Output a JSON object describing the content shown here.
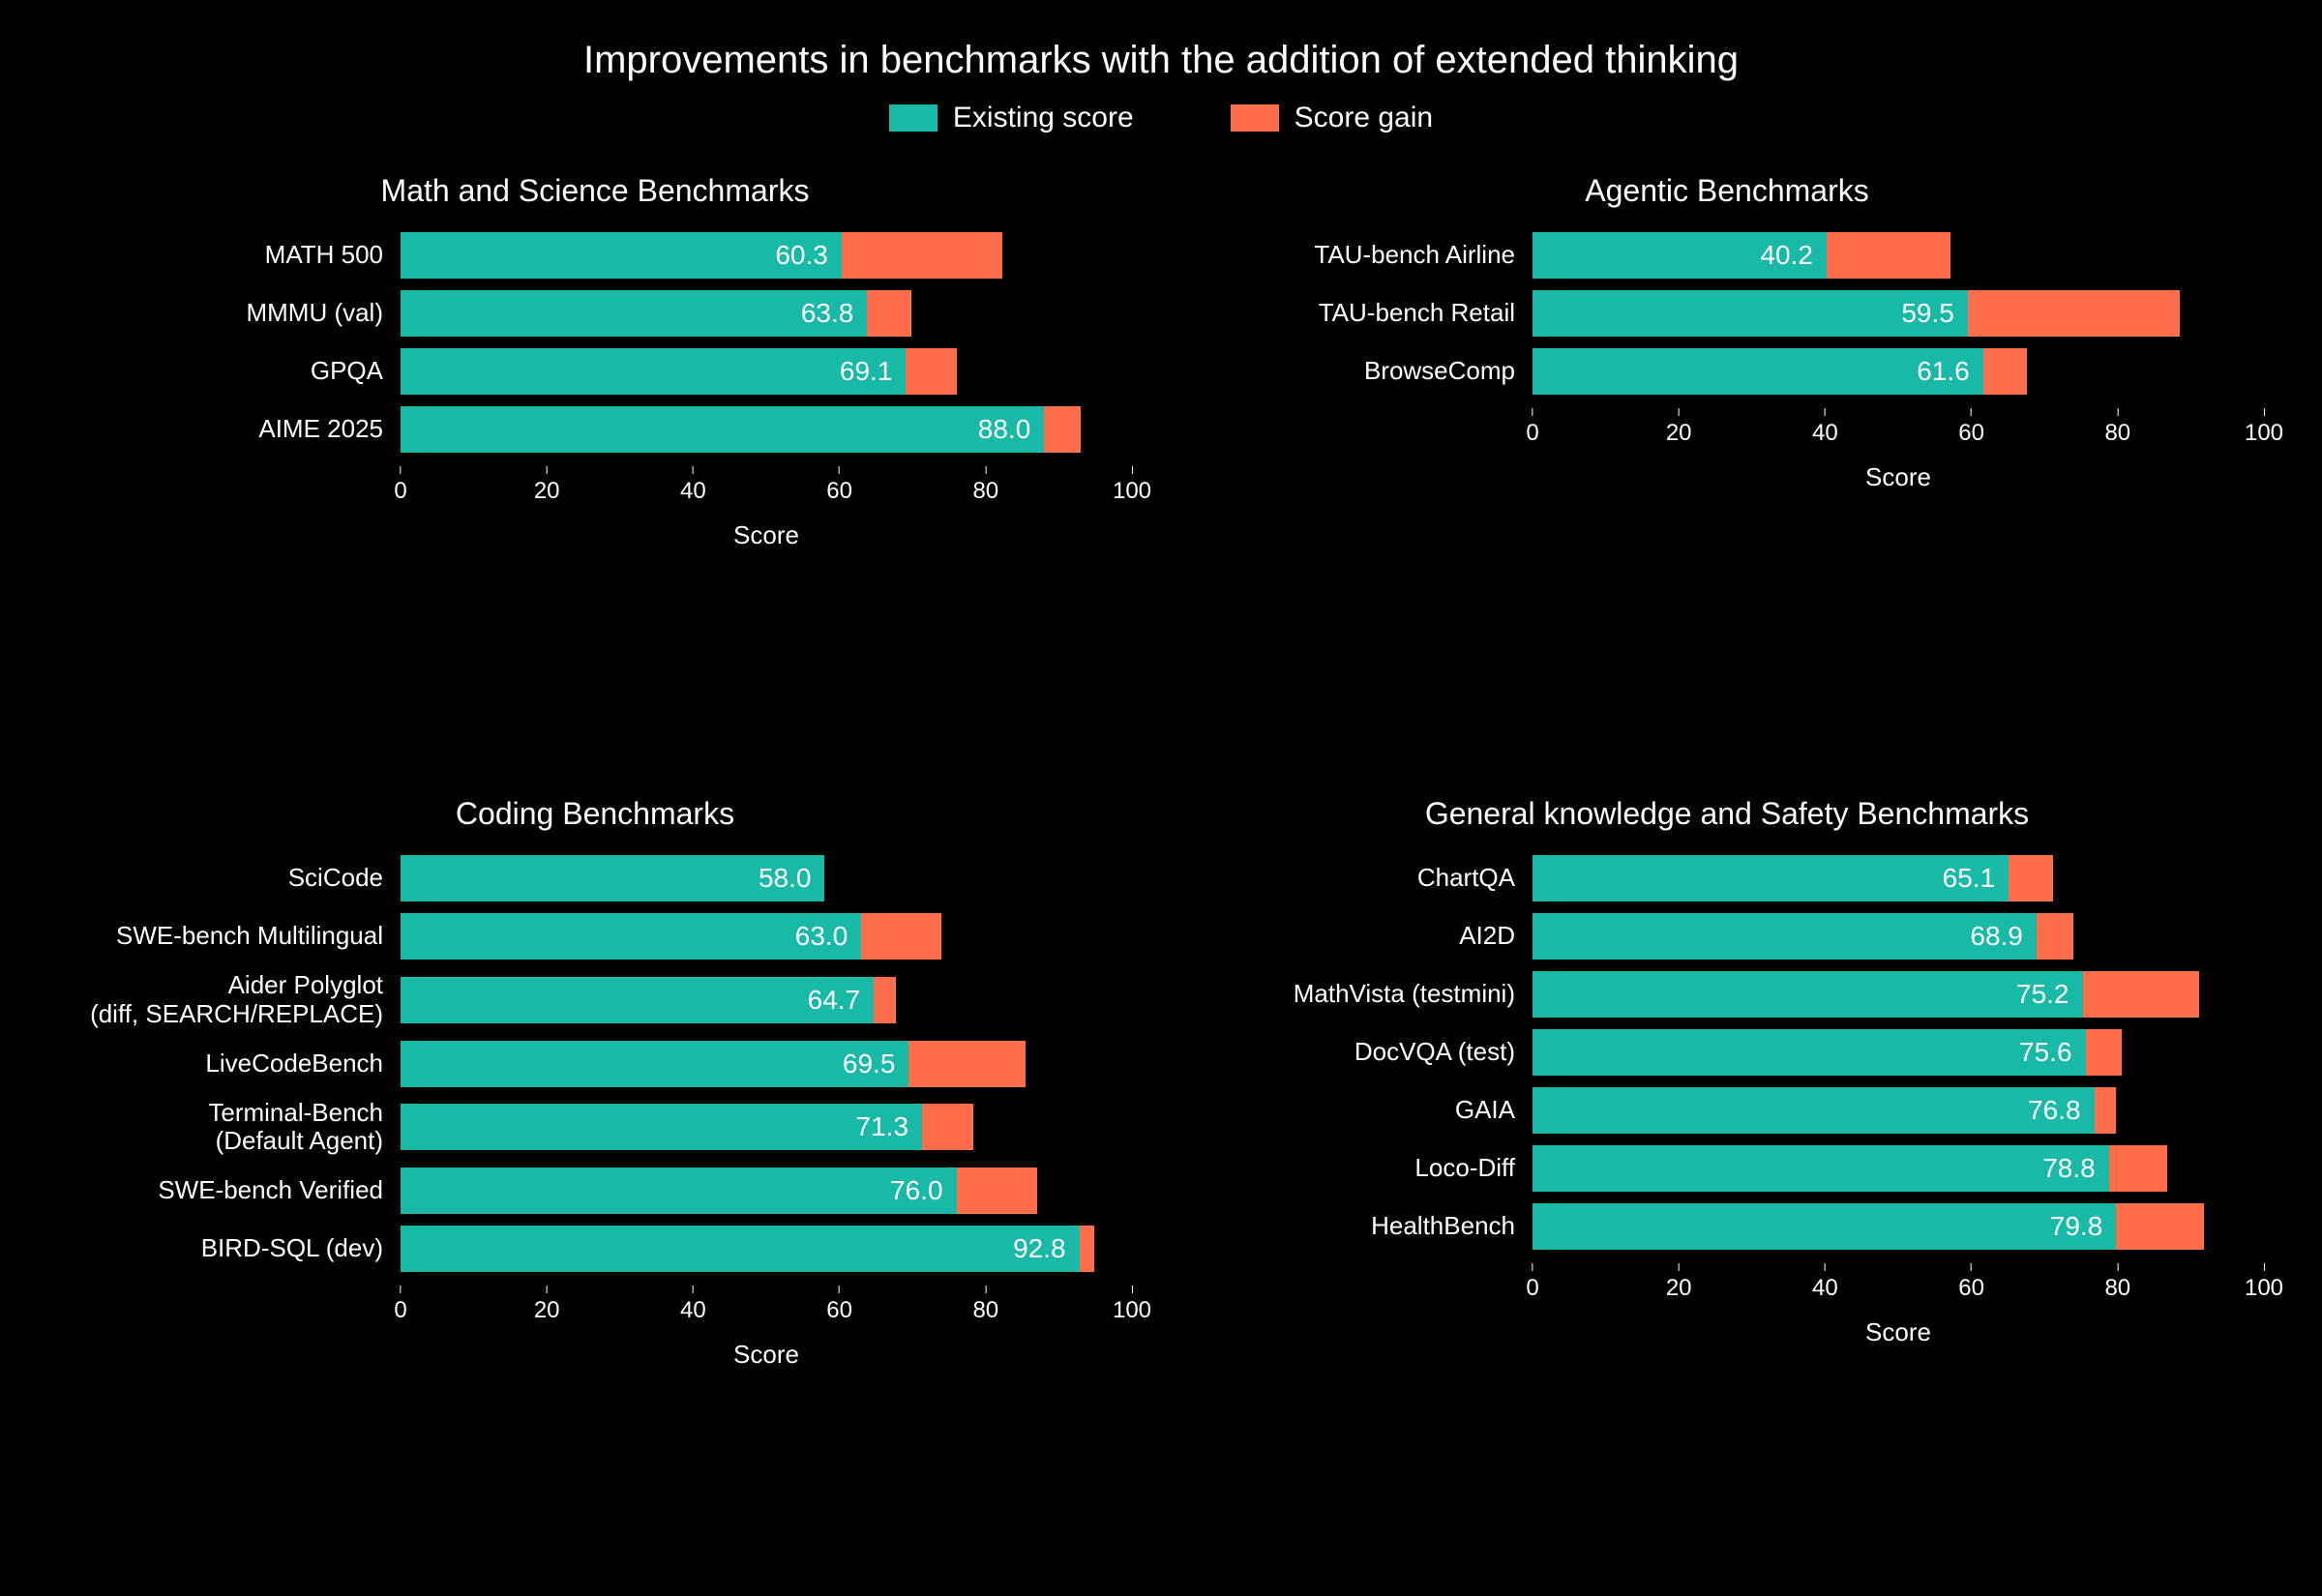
{
  "title": "Improvements in benchmarks with the addition of extended thinking",
  "legend": [
    {
      "label": "Existing score",
      "color": "#18baa7"
    },
    {
      "label": "Score gain",
      "color": "#ff6e4b"
    }
  ],
  "colors": {
    "existing": "#18baa7",
    "gain": "#ff6e4b",
    "background": "#000000",
    "text": "#ffffff"
  },
  "xaxis": {
    "label": "Score",
    "min": 0,
    "max": 100,
    "ticks": [
      0,
      20,
      40,
      60,
      80,
      100
    ]
  },
  "panels": [
    {
      "title": "Math and Science Benchmarks",
      "rows": [
        {
          "label": "MATH 500",
          "existing": 60.3,
          "gain": 22.0
        },
        {
          "label": "MMMU (val)",
          "existing": 63.8,
          "gain": 6.0
        },
        {
          "label": "GPQA",
          "existing": 69.1,
          "gain": 7.0
        },
        {
          "label": "AIME 2025",
          "existing": 88.0,
          "gain": 5.0
        }
      ]
    },
    {
      "title": "Agentic Benchmarks",
      "rows": [
        {
          "label": "TAU-bench Airline",
          "existing": 40.2,
          "gain": 17.0
        },
        {
          "label": "TAU-bench Retail",
          "existing": 59.5,
          "gain": 29.0
        },
        {
          "label": "BrowseComp",
          "existing": 61.6,
          "gain": 6.0
        }
      ]
    },
    {
      "title": "Coding Benchmarks",
      "rows": [
        {
          "label": "SciCode",
          "existing": 58.0,
          "gain": 0.0
        },
        {
          "label": "SWE-bench Multilingual",
          "existing": 63.0,
          "gain": 11.0
        },
        {
          "label": "Aider Polyglot\n(diff, SEARCH/REPLACE)",
          "existing": 64.7,
          "gain": 3.0
        },
        {
          "label": "LiveCodeBench",
          "existing": 69.5,
          "gain": 16.0
        },
        {
          "label": "Terminal-Bench\n(Default Agent)",
          "existing": 71.3,
          "gain": 7.0
        },
        {
          "label": "SWE-bench Verified",
          "existing": 76.0,
          "gain": 11.0
        },
        {
          "label": "BIRD-SQL (dev)",
          "existing": 92.8,
          "gain": 2.0
        }
      ]
    },
    {
      "title": "General knowledge and Safety Benchmarks",
      "rows": [
        {
          "label": "ChartQA",
          "existing": 65.1,
          "gain": 6.0
        },
        {
          "label": "AI2D",
          "existing": 68.9,
          "gain": 5.0
        },
        {
          "label": "MathVista (testmini)",
          "existing": 75.2,
          "gain": 16.0
        },
        {
          "label": "DocVQA (test)",
          "existing": 75.6,
          "gain": 5.0
        },
        {
          "label": "GAIA",
          "existing": 76.8,
          "gain": 3.0
        },
        {
          "label": "Loco-Diff",
          "existing": 78.8,
          "gain": 8.0
        },
        {
          "label": "HealthBench",
          "existing": 79.8,
          "gain": 12.0
        }
      ]
    }
  ]
}
